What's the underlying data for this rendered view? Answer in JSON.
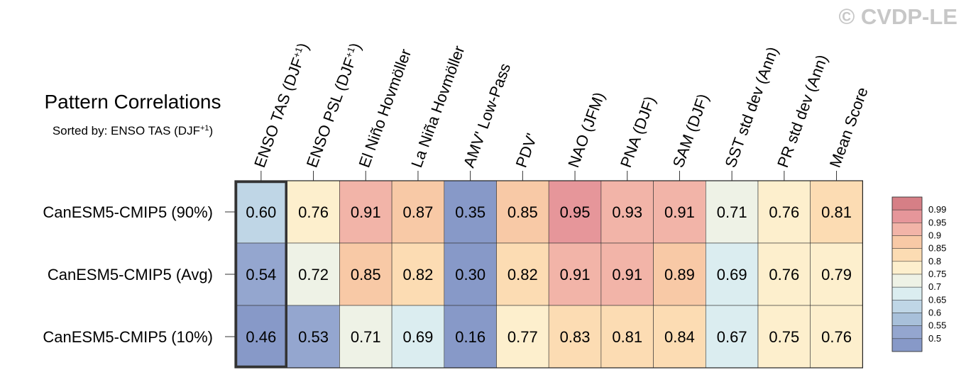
{
  "watermark": "© CVDP-LE",
  "chart_data": {
    "type": "heatmap",
    "title": "Pattern Correlations",
    "subtitle": {
      "prefix": "Sorted by: ENSO TAS (DJF",
      "sup": "+1",
      "suffix": ")"
    },
    "columns": [
      {
        "label": "ENSO TAS (DJF",
        "sup": "+1",
        "suffix": ")"
      },
      {
        "label": "ENSO PSL (DJF",
        "sup": "+1",
        "suffix": ")"
      },
      {
        "label": "El Niño Hovmöller"
      },
      {
        "label": "La Niña Hovmöller"
      },
      {
        "label": "AMV' Low-Pass"
      },
      {
        "label": "PDV'"
      },
      {
        "label": "NAO (JFM)"
      },
      {
        "label": "PNA (DJF)"
      },
      {
        "label": "SAM (DJF)"
      },
      {
        "label": "SST std dev (Ann)"
      },
      {
        "label": "PR std dev (Ann)"
      },
      {
        "label": "Mean Score"
      }
    ],
    "rows": [
      "CanESM5-CMIP5 (90%)",
      "CanESM5-CMIP5 (Avg)",
      "CanESM5-CMIP5 (10%)"
    ],
    "values": [
      [
        0.6,
        0.76,
        0.91,
        0.87,
        0.35,
        0.85,
        0.95,
        0.93,
        0.91,
        0.71,
        0.76,
        0.81
      ],
      [
        0.54,
        0.72,
        0.85,
        0.82,
        0.3,
        0.82,
        0.91,
        0.91,
        0.89,
        0.69,
        0.76,
        0.79
      ],
      [
        0.46,
        0.53,
        0.71,
        0.69,
        0.16,
        0.77,
        0.83,
        0.81,
        0.84,
        0.67,
        0.75,
        0.76
      ]
    ],
    "sorted_column_highlight": 0,
    "colorbar": {
      "levels": [
        "0.99",
        "0.95",
        "0.9",
        "0.85",
        "0.8",
        "0.75",
        "0.7",
        "0.65",
        "0.6",
        "0.55",
        "0.5"
      ],
      "colors": [
        "#d67f86",
        "#e6969a",
        "#f2b4a8",
        "#f8c9a6",
        "#fcdcb3",
        "#fdefcd",
        "#eef2e6",
        "#dbedf0",
        "#bfd6e6",
        "#a8c0da",
        "#94a6cf",
        "#8799c8"
      ]
    }
  }
}
